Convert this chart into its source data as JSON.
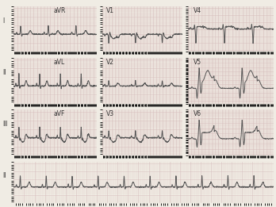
{
  "bg_color": "#f0ece4",
  "grid_color": "#d4b8b8",
  "line_color": "#555555",
  "label_color": "#333333",
  "fig_width": 3.48,
  "fig_height": 2.61,
  "dpi": 100,
  "row_tops": [
    0.97,
    0.72,
    0.47,
    0.22
  ],
  "row_bottoms": [
    0.75,
    0.5,
    0.25,
    0.02
  ],
  "strip_starts": [
    0.05,
    0.37,
    0.68
  ],
  "strip_ends": [
    0.35,
    0.66,
    0.99
  ]
}
